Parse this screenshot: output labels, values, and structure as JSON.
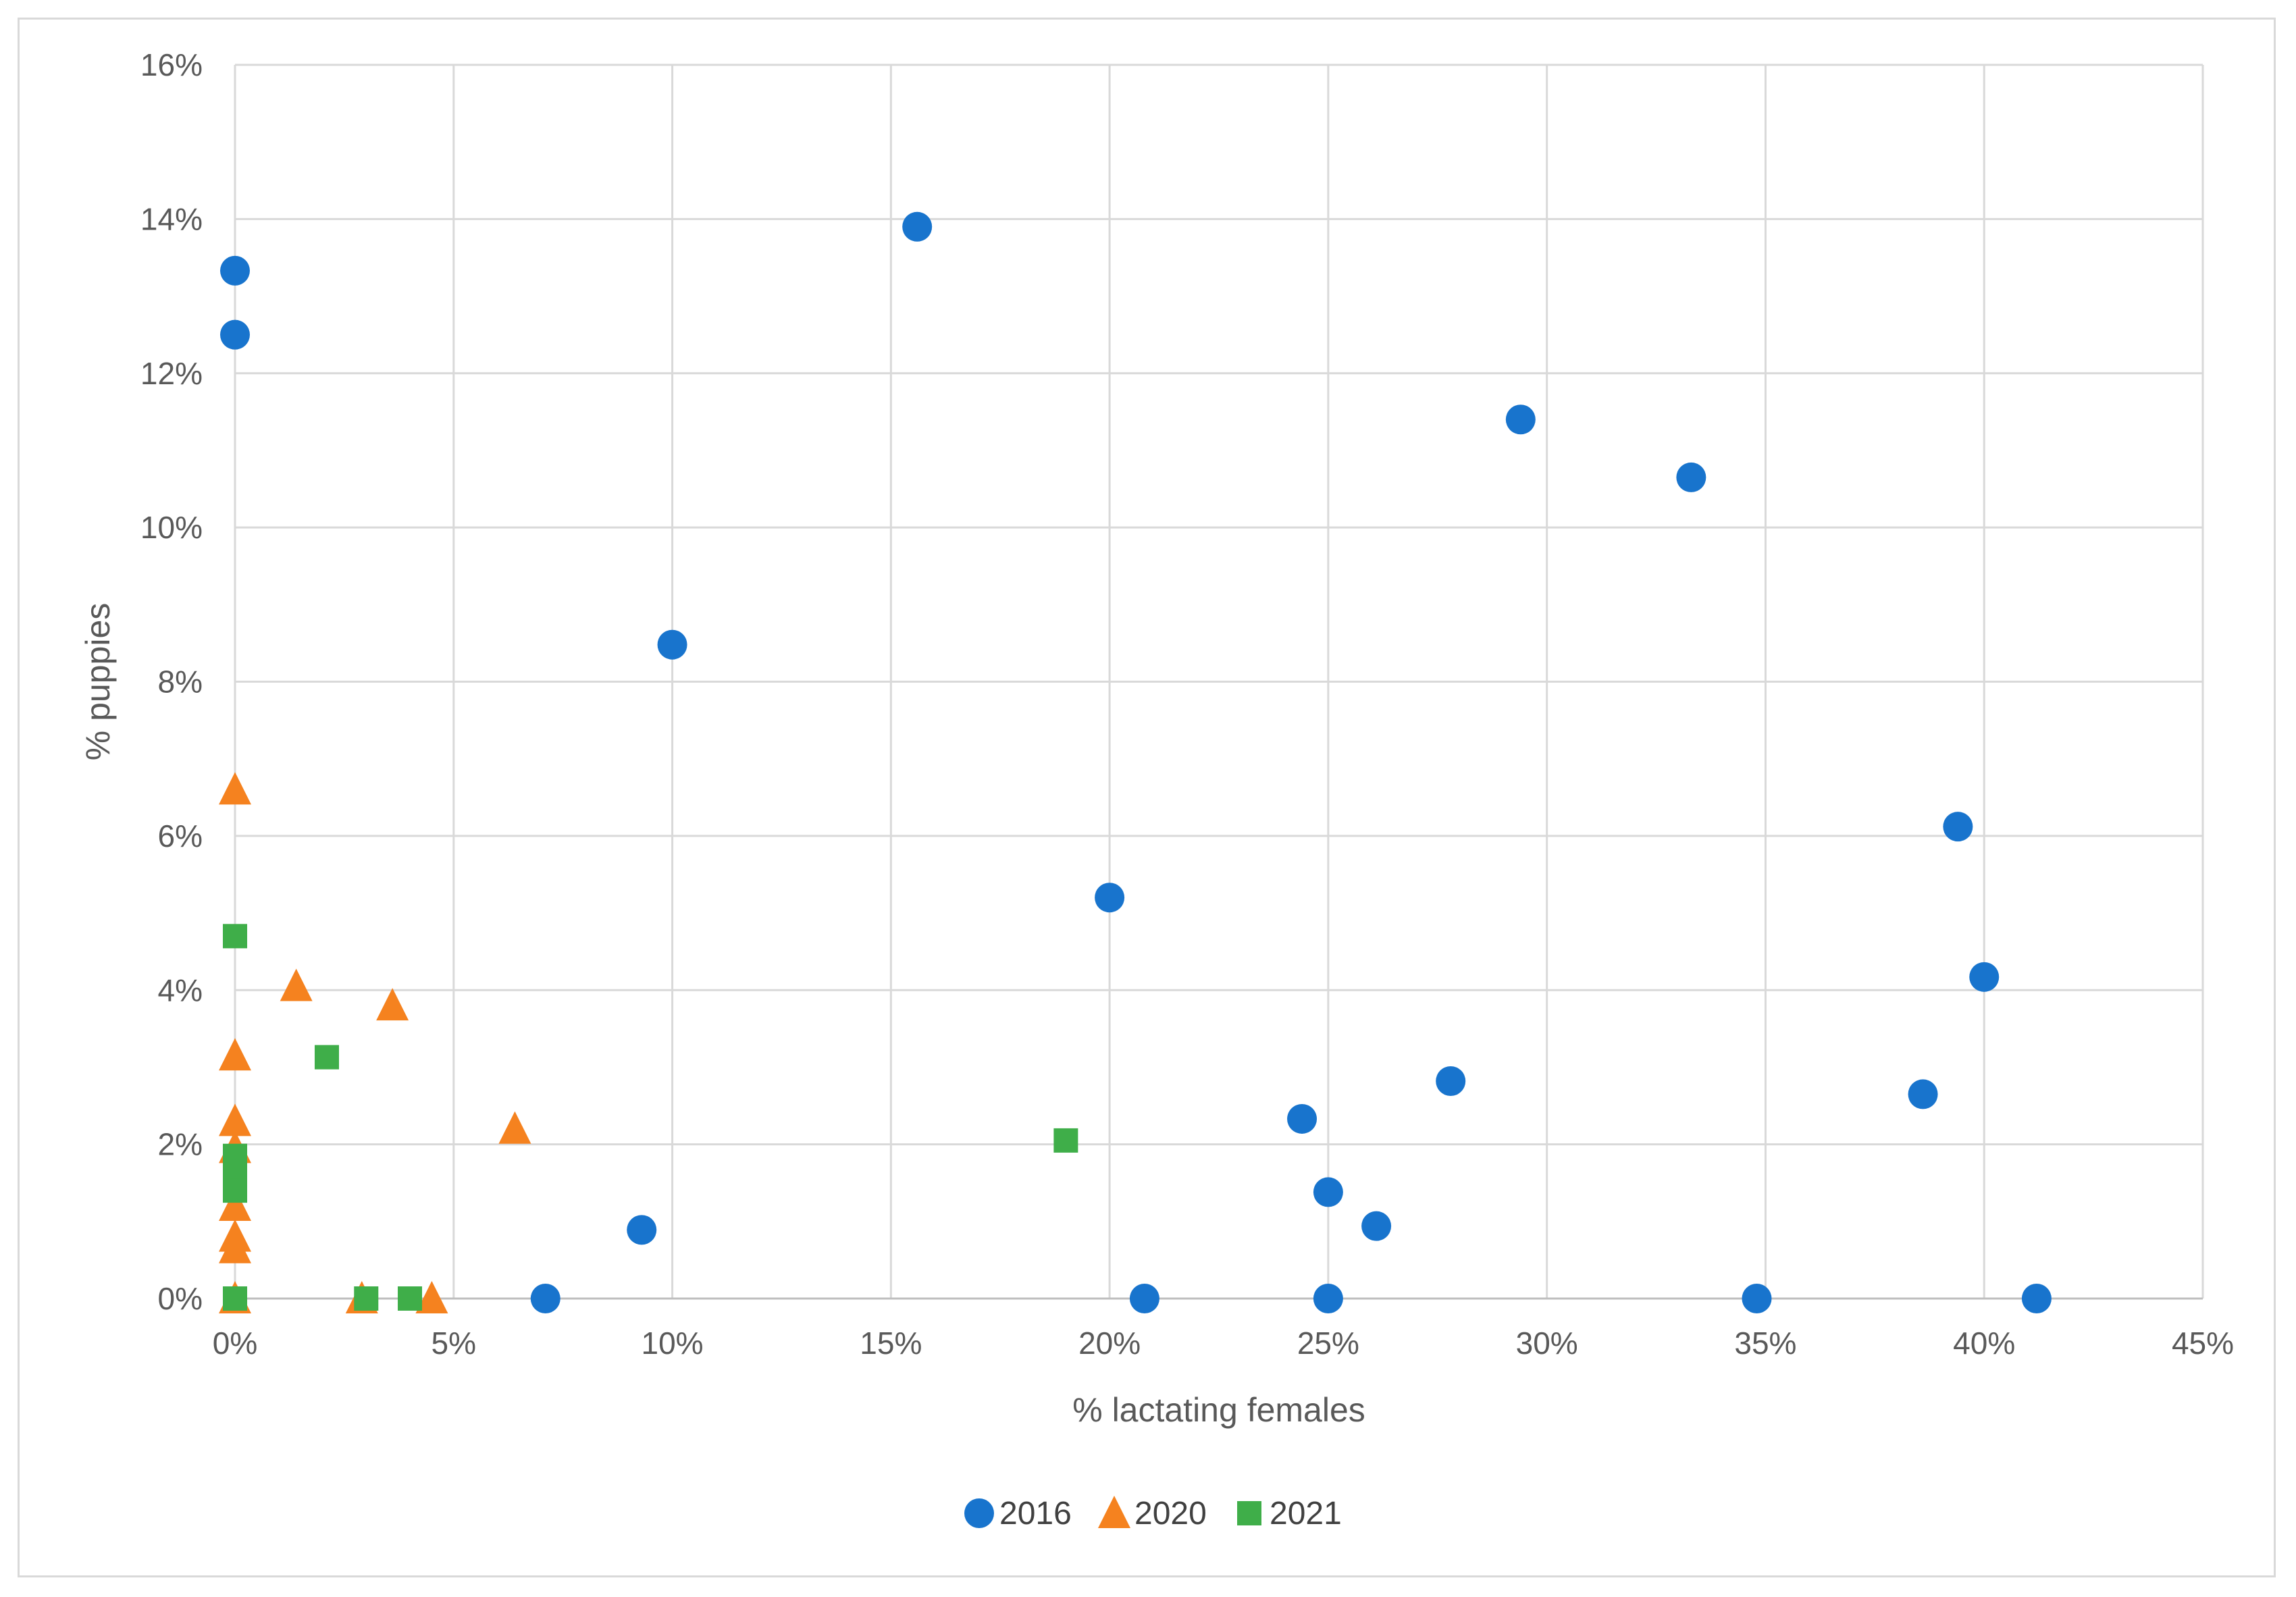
{
  "chart_data": {
    "type": "scatter",
    "title": "",
    "xlabel": "% lactating females",
    "ylabel": "% puppies",
    "xlim": [
      0,
      45
    ],
    "ylim": [
      0,
      16
    ],
    "x_ticks": [
      0,
      5,
      10,
      15,
      20,
      25,
      30,
      35,
      40,
      45
    ],
    "y_ticks": [
      0,
      2,
      4,
      6,
      8,
      10,
      12,
      14,
      16
    ],
    "x_tick_labels": [
      "0%",
      "5%",
      "10%",
      "15%",
      "20%",
      "25%",
      "30%",
      "35%",
      "40%",
      "45%"
    ],
    "y_tick_labels": [
      "0%",
      "2%",
      "4%",
      "6%",
      "8%",
      "10%",
      "12%",
      "14%",
      "16%"
    ],
    "grid": true,
    "legend_position": "bottom",
    "series": [
      {
        "name": "2016",
        "marker": "circle",
        "color": "#1874cd",
        "points": [
          [
            0,
            13.33
          ],
          [
            0,
            12.5
          ],
          [
            15.6,
            13.9
          ],
          [
            10.0,
            8.48
          ],
          [
            29.4,
            11.4
          ],
          [
            33.3,
            10.65
          ],
          [
            20.0,
            5.2
          ],
          [
            39.4,
            6.12
          ],
          [
            40.0,
            4.17
          ],
          [
            38.6,
            2.65
          ],
          [
            27.8,
            2.82
          ],
          [
            24.4,
            2.33
          ],
          [
            25.0,
            1.38
          ],
          [
            26.1,
            0.94
          ],
          [
            9.3,
            0.89
          ],
          [
            7.1,
            0
          ],
          [
            20.8,
            0
          ],
          [
            25.0,
            0
          ],
          [
            34.8,
            0
          ],
          [
            41.2,
            0
          ]
        ]
      },
      {
        "name": "2020",
        "marker": "triangle",
        "color": "#f5821f",
        "points": [
          [
            0,
            6.6
          ],
          [
            1.4,
            4.05
          ],
          [
            3.6,
            3.8
          ],
          [
            0,
            3.15
          ],
          [
            0,
            2.3
          ],
          [
            6.4,
            2.2
          ],
          [
            0,
            1.95
          ],
          [
            0,
            1.2
          ],
          [
            0,
            0.8
          ],
          [
            0,
            0.65
          ],
          [
            0,
            0
          ],
          [
            2.9,
            0
          ],
          [
            4.5,
            0
          ]
        ]
      },
      {
        "name": "2021",
        "marker": "square",
        "color": "#3fae49",
        "points": [
          [
            0,
            4.7
          ],
          [
            2.1,
            3.13
          ],
          [
            19.0,
            2.05
          ],
          [
            0,
            1.85
          ],
          [
            0,
            1.6
          ],
          [
            0,
            1.4
          ],
          [
            0,
            0
          ],
          [
            3.0,
            0
          ],
          [
            4.0,
            0
          ]
        ]
      }
    ]
  }
}
